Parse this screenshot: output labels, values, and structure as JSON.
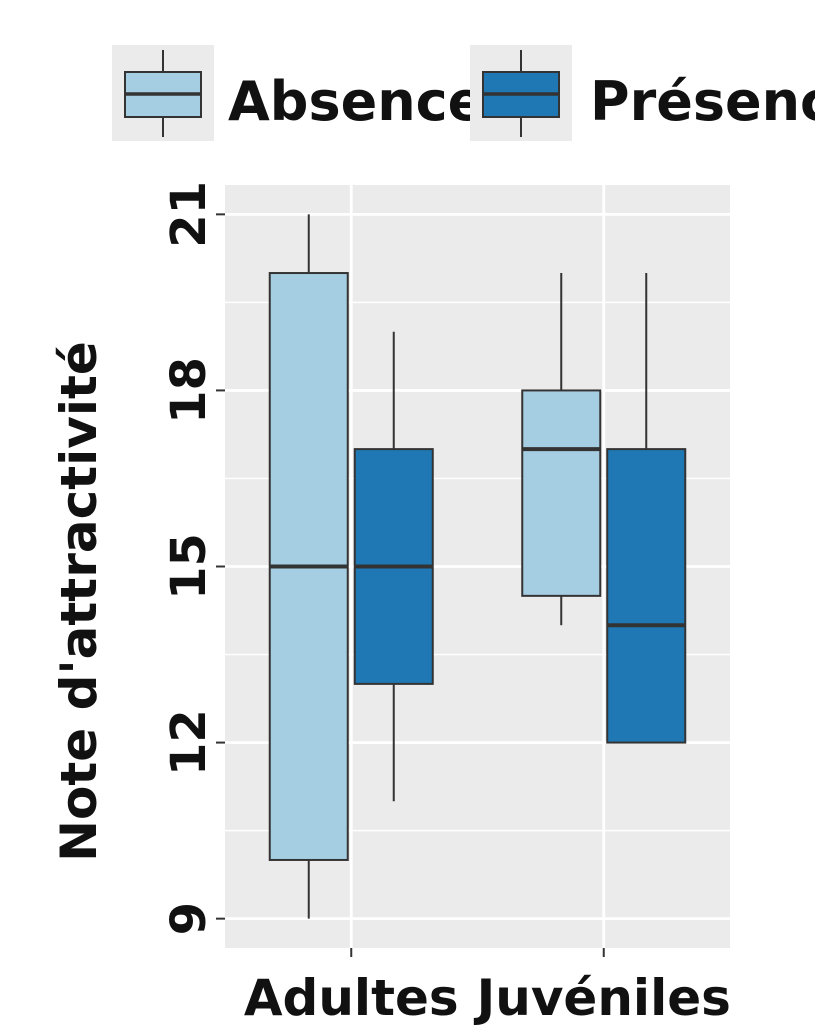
{
  "chart_data": {
    "type": "boxplot",
    "title": "",
    "xlabel": "",
    "ylabel": "Note d'attractivité",
    "categories": [
      "Adultes",
      "Juvéniles"
    ],
    "ylim": [
      8.5,
      21.5
    ],
    "yticks": [
      9,
      12,
      15,
      18,
      21
    ],
    "ytick_labels": [
      "9",
      "12",
      "15",
      "18",
      "21"
    ],
    "grid": true,
    "legend_position": "top",
    "series": [
      {
        "name": "Absence",
        "color": "#a6cee3",
        "boxes": [
          {
            "category": "Adultes",
            "min": 9,
            "q1": 10,
            "median": 15,
            "q3": 20,
            "max": 21
          },
          {
            "category": "Juvéniles",
            "min": 14,
            "q1": 14.5,
            "median": 17,
            "q3": 18,
            "max": 20
          }
        ]
      },
      {
        "name": "Présence",
        "color": "#1f78b4",
        "boxes": [
          {
            "category": "Adultes",
            "min": 11,
            "q1": 13,
            "median": 15,
            "q3": 17,
            "max": 19
          },
          {
            "category": "Juvéniles",
            "min": 12,
            "q1": 12,
            "median": 14,
            "q3": 17,
            "max": 20
          }
        ]
      }
    ]
  }
}
